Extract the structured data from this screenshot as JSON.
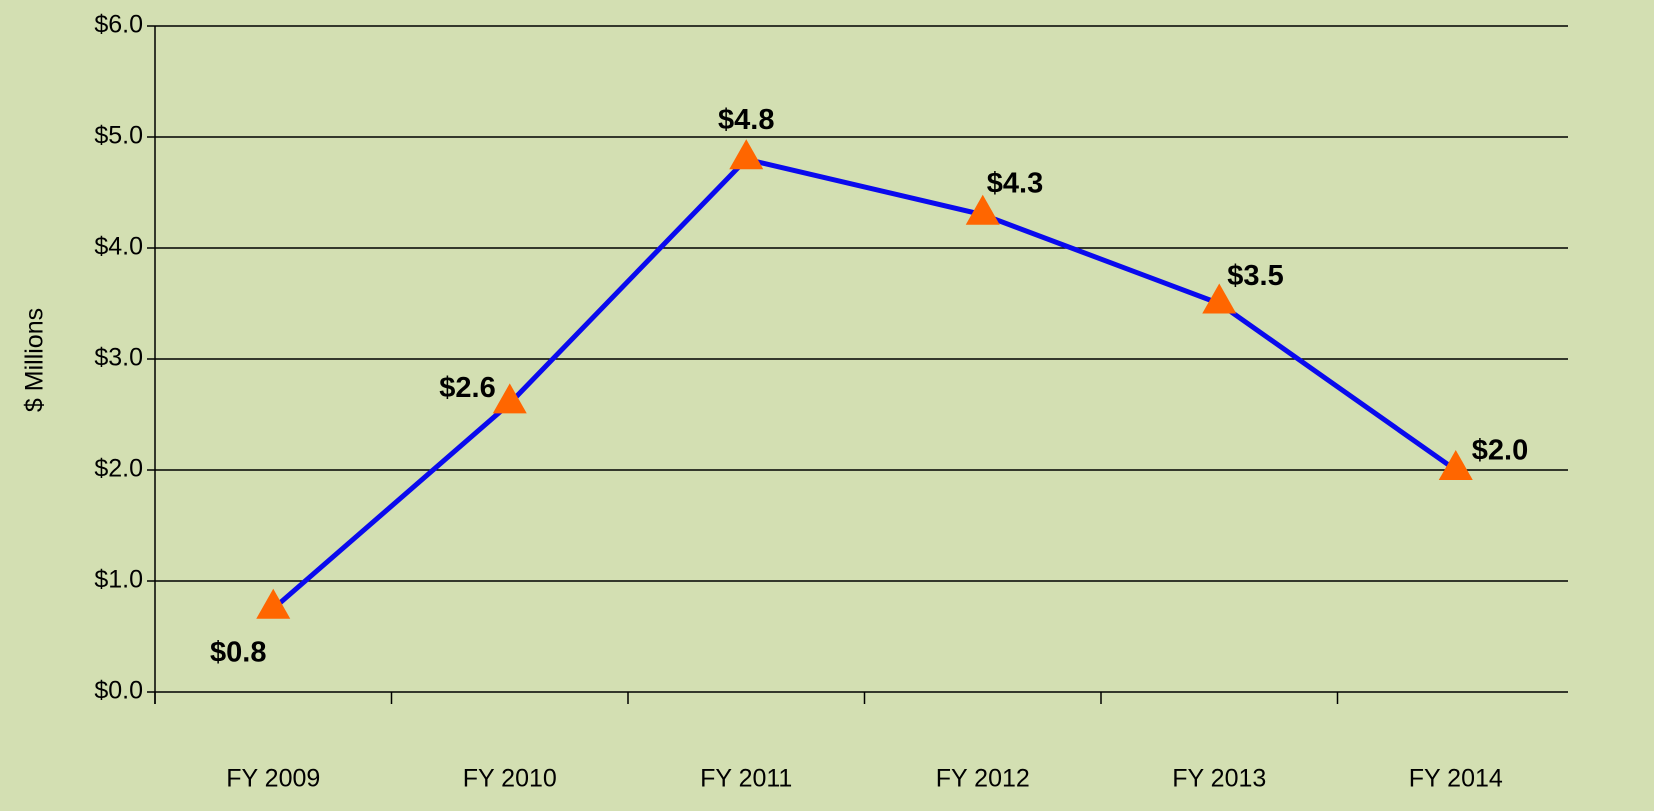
{
  "chart_data": {
    "type": "line",
    "y_label": "$ Millions",
    "categories": [
      "FY 2009",
      "FY 2010",
      "FY 2011",
      "FY 2012",
      "FY 2013",
      "FY 2014"
    ],
    "values": [
      0.75,
      2.6,
      4.8,
      4.3,
      3.5,
      2.0
    ],
    "value_labels": [
      "$0.8",
      "$2.6",
      "$4.8",
      "$4.3",
      "$3.5",
      "$2.0"
    ],
    "line_color": "#0a0aee",
    "marker_color": "#ff6600",
    "ylim": [
      0,
      6
    ],
    "yticks": [
      {
        "value": 0,
        "label": "$0.0"
      },
      {
        "value": 1,
        "label": "$1.0"
      },
      {
        "value": 2,
        "label": "$2.0"
      },
      {
        "value": 3,
        "label": "$3.0"
      },
      {
        "value": 4,
        "label": "$4.0"
      },
      {
        "value": 5,
        "label": "$5.0"
      },
      {
        "value": 6,
        "label": "$6.0"
      }
    ],
    "grid": true
  }
}
